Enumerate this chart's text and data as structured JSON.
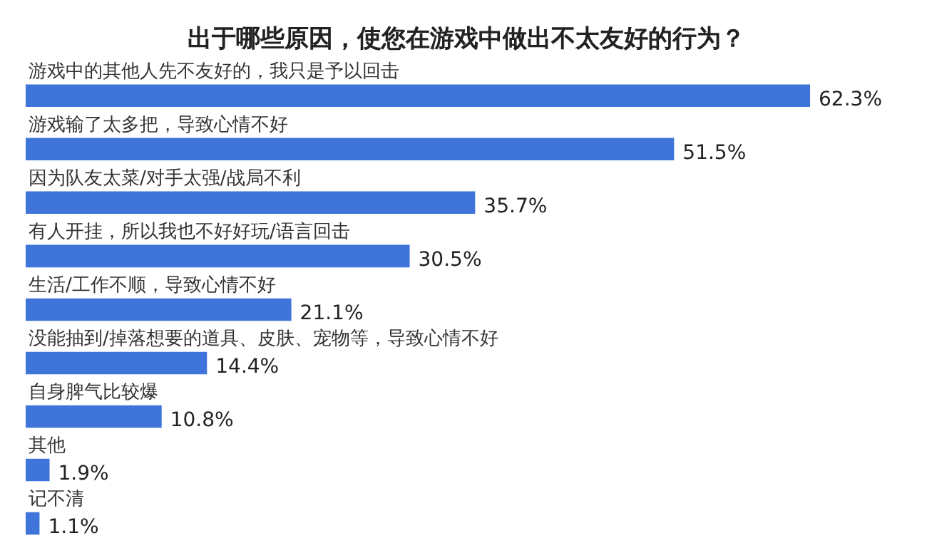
{
  "chart_data": {
    "type": "bar",
    "orientation": "horizontal",
    "title": "出于哪些原因，使您在游戏中做出不太友好的行为？",
    "categories": [
      "游戏中的其他人先不友好的，我只是予以回击",
      "游戏输了太多把，导致心情不好",
      "因为队友太菜/对手太强/战局不利",
      "有人开挂，所以我也不好好玩/语言回击",
      "生活/工作不顺，导致心情不好",
      "没能抽到/掉落想要的道具、皮肤、宠物等，导致心情不好",
      "自身脾气比较爆",
      "其他",
      "记不清"
    ],
    "values": [
      62.3,
      51.5,
      35.7,
      30.5,
      21.1,
      14.4,
      10.8,
      1.9,
      1.1
    ],
    "value_labels": [
      "62.3%",
      "51.5%",
      "35.7%",
      "30.5%",
      "21.1%",
      "14.4%",
      "10.8%",
      "1.9%",
      "1.1%"
    ],
    "color": "#3f74da",
    "grid": false,
    "legend": false,
    "tick_labels": false
  }
}
